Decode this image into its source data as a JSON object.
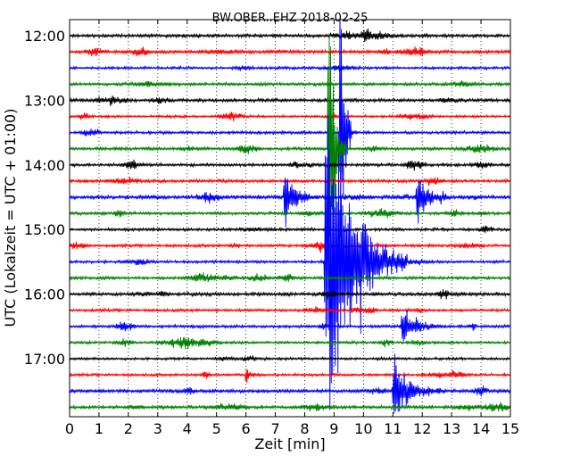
{
  "chart_data": {
    "type": "line",
    "title": "BW.OBER..EHZ 2018-02-25",
    "xlabel": "Zeit  [min]",
    "ylabel": "UTC (Lokalzeit = UTC + 01:00)",
    "xlim": [
      0,
      15
    ],
    "x_ticks": [
      0,
      1,
      2,
      3,
      4,
      5,
      6,
      7,
      8,
      9,
      10,
      11,
      12,
      13,
      14,
      15
    ],
    "y_ticks": [
      "12:00",
      "13:00",
      "14:00",
      "15:00",
      "16:00",
      "17:00"
    ],
    "grid": "vertical dotted",
    "color_cycle": [
      "#000000",
      "#ff0000",
      "#0000ff",
      "#008000"
    ],
    "trace_interval_minutes": 15,
    "traces_start": "12:00",
    "traces_end": "17:45",
    "trace_count": 24,
    "events": [
      {
        "trace": "13:30",
        "minute": 9.2,
        "amplitude": "very large",
        "duration_min": 0.4
      },
      {
        "trace": "13:45",
        "minute": 8.8,
        "amplitude": "very large",
        "duration_min": 0.6
      },
      {
        "trace": "14:30",
        "minute": 7.3,
        "amplitude": "large",
        "duration_min": 1.2
      },
      {
        "trace": "14:30",
        "minute": 11.8,
        "amplitude": "large",
        "duration_min": 1.0
      },
      {
        "trace": "15:30",
        "minute": 8.7,
        "amplitude": "very large",
        "duration_min": 2.8
      },
      {
        "trace": "16:30",
        "minute": 11.3,
        "amplitude": "medium",
        "duration_min": 1.5
      },
      {
        "trace": "17:15",
        "minute": 6.0,
        "amplitude": "small",
        "duration_min": 0.5
      },
      {
        "trace": "17:30",
        "minute": 11.0,
        "amplitude": "large",
        "duration_min": 1.8
      }
    ]
  }
}
